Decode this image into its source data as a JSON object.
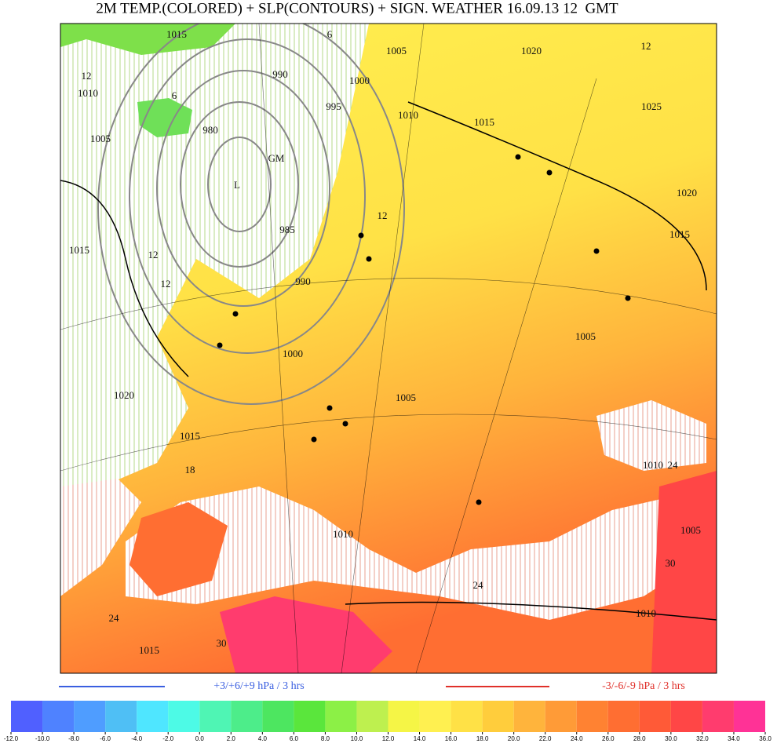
{
  "title": "2M TEMP.(COLORED) + SLP(CONTOURS) + SIGN. WEATHER 16.09.13 12  GMT",
  "map_labels": [
    "1015",
    "6",
    "1005",
    "1020",
    "12",
    "12",
    "1010",
    "990",
    "1000",
    "6",
    "995",
    "1025",
    "1010",
    "1015",
    "980",
    "1005",
    "GM",
    "L",
    "1020",
    "12",
    "985",
    "1015",
    "12",
    "1015",
    "990",
    "12",
    "1005",
    "1000",
    "1020",
    "1015",
    "18",
    "1010",
    "1010",
    "24",
    "1005",
    "30",
    "24",
    "1010",
    "24",
    "1015",
    "30",
    "1005"
  ],
  "legend": {
    "rising": "+3/+6/+9 hPa / 3 hrs",
    "rising_color": "#3a5fe0",
    "falling": "-3/-6/-9 hPa / 3 hrs",
    "falling_color": "#e0302a"
  },
  "colorbar": {
    "ticks": [
      {
        "value": -12,
        "label": "-12.0"
      },
      {
        "value": -10,
        "label": "-10.0"
      },
      {
        "value": -8,
        "label": "-8.0"
      },
      {
        "value": -6,
        "label": "-6.0"
      },
      {
        "value": -4,
        "label": "-4.0"
      },
      {
        "value": -2,
        "label": "-2.0"
      },
      {
        "value": 0,
        "label": "0.0"
      },
      {
        "value": 2,
        "label": "2.0"
      },
      {
        "value": 4,
        "label": "4.0"
      },
      {
        "value": 6,
        "label": "6.0"
      },
      {
        "value": 8,
        "label": "8.0"
      },
      {
        "value": 10,
        "label": "10.0"
      },
      {
        "value": 12,
        "label": "12.0"
      },
      {
        "value": 14,
        "label": "14.0"
      },
      {
        "value": 16,
        "label": "16.0"
      },
      {
        "value": 18,
        "label": "18.0"
      },
      {
        "value": 20,
        "label": "20.0"
      },
      {
        "value": 22,
        "label": "22.0"
      },
      {
        "value": 24,
        "label": "24.0"
      },
      {
        "value": 26,
        "label": "26.0"
      },
      {
        "value": 28,
        "label": "28.0"
      },
      {
        "value": 30,
        "label": "30.0"
      },
      {
        "value": 32,
        "label": "32.0"
      },
      {
        "value": 34,
        "label": "34.0"
      },
      {
        "value": 36,
        "label": "36.0"
      }
    ],
    "colors": [
      "#5060ff",
      "#4f82ff",
      "#4f9dff",
      "#4fbff5",
      "#4fe6ff",
      "#4dfae6",
      "#4ff5b4",
      "#4ded8a",
      "#4de660",
      "#5ae63c",
      "#8cf046",
      "#bef04f",
      "#f5f546",
      "#fff050",
      "#ffe146",
      "#ffcd3c",
      "#ffb43c",
      "#ff9b37",
      "#ff8232",
      "#ff6e32",
      "#ff5a37",
      "#ff4646",
      "#ff3c6e",
      "#ff3296"
    ]
  }
}
